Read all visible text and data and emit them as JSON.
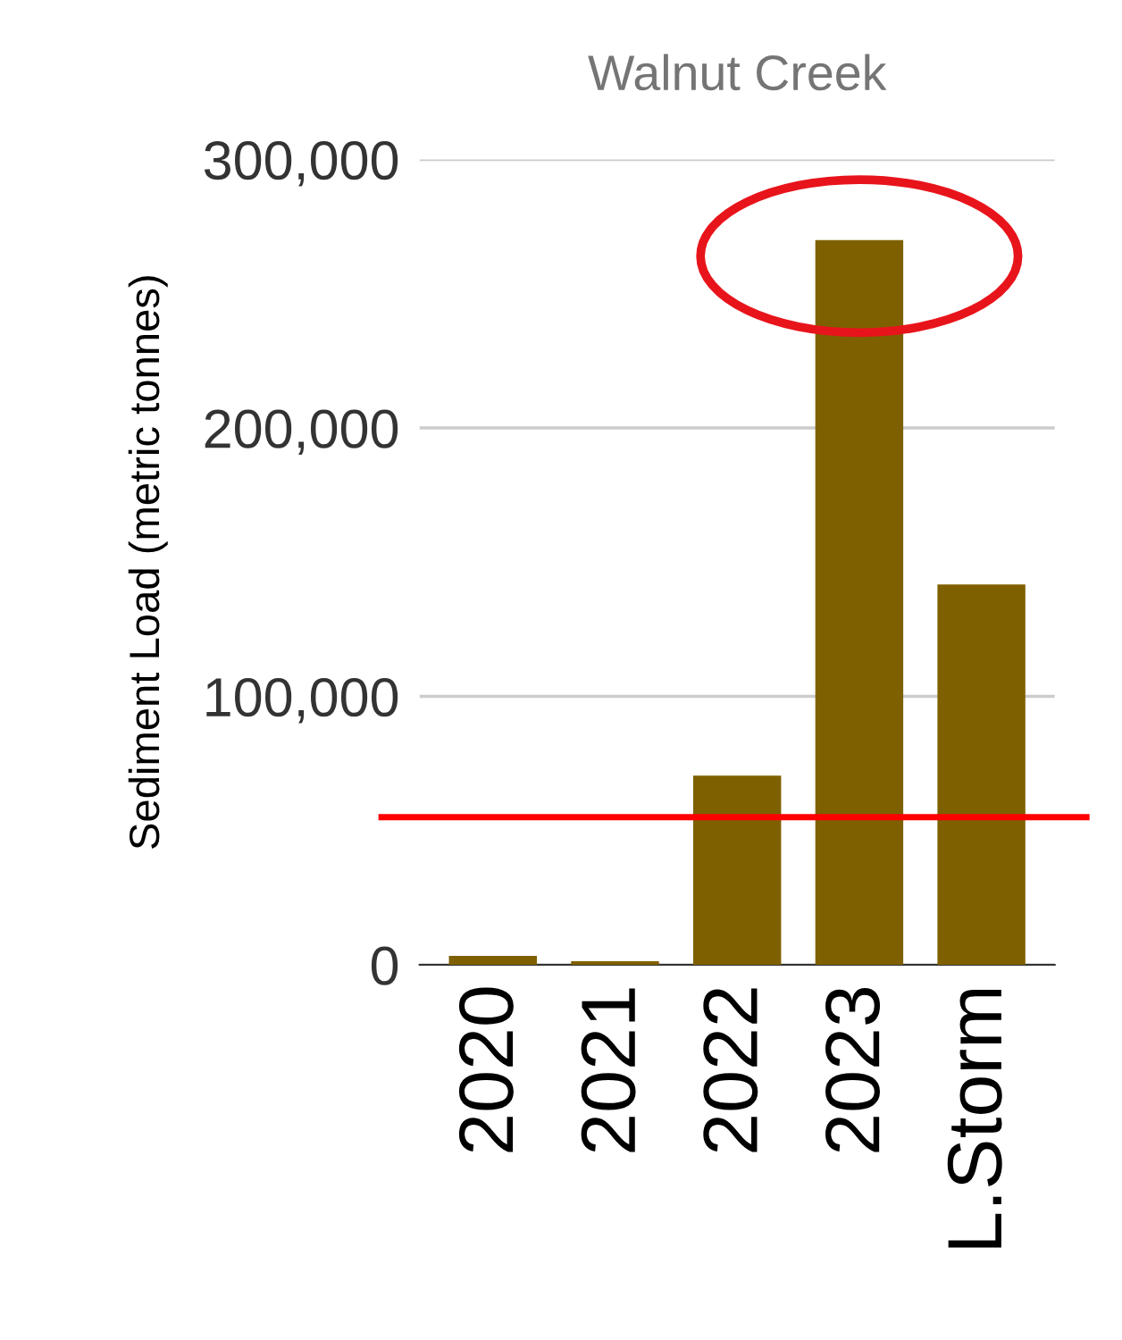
{
  "chart_data": {
    "type": "bar",
    "title": "Walnut Creek",
    "ylabel": "Sediment Load (metric tonnes)",
    "categories": [
      "2020",
      "2021",
      "2022",
      "2023",
      "L.Storm"
    ],
    "values": [
      3300,
      1300,
      70500,
      270000,
      141700
    ],
    "color": "#7f6000",
    "ylim": [
      0,
      300000
    ],
    "yticks": [
      {
        "value": 0,
        "label": "0"
      },
      {
        "value": 100000,
        "label": "100,000"
      },
      {
        "value": 200000,
        "label": "200,000"
      },
      {
        "value": 300000,
        "label": "300,000"
      }
    ],
    "grid": "y",
    "ref_lines": [
      {
        "axis": "y",
        "value": 55000,
        "color": "#ff0000"
      }
    ]
  }
}
